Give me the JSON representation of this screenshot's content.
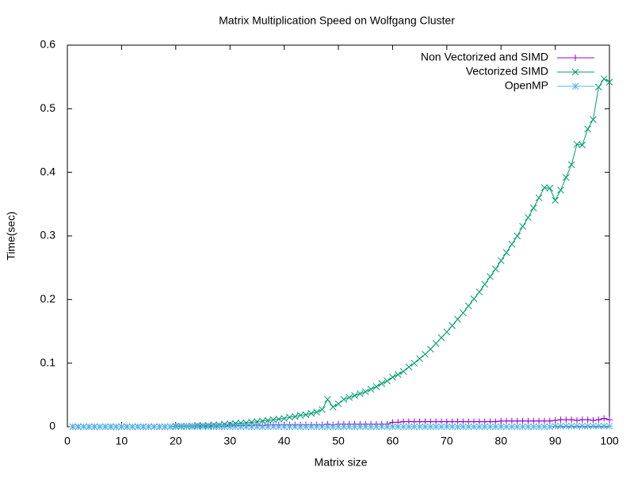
{
  "chart_data": {
    "type": "line",
    "title": "Matrix Multiplication Speed on Wolfgang Cluster",
    "x_label": "Matrix size",
    "y_label": "Time(sec)",
    "x": [
      1,
      2,
      3,
      4,
      5,
      6,
      7,
      8,
      9,
      10,
      11,
      12,
      13,
      14,
      15,
      16,
      17,
      18,
      19,
      20,
      21,
      22,
      23,
      24,
      25,
      26,
      27,
      28,
      29,
      30,
      31,
      32,
      33,
      34,
      35,
      36,
      37,
      38,
      39,
      40,
      41,
      42,
      43,
      44,
      45,
      46,
      47,
      48,
      49,
      50,
      51,
      52,
      53,
      54,
      55,
      56,
      57,
      58,
      59,
      60,
      61,
      62,
      63,
      64,
      65,
      66,
      67,
      68,
      69,
      70,
      71,
      72,
      73,
      74,
      75,
      76,
      77,
      78,
      79,
      80,
      81,
      82,
      83,
      84,
      85,
      86,
      87,
      88,
      89,
      90,
      91,
      92,
      93,
      94,
      95,
      96,
      97,
      98,
      99,
      100
    ],
    "series": [
      {
        "name": "Non Vectorized and SIMD",
        "color": "#9400d3",
        "marker": "plus",
        "values": [
          0,
          0,
          0,
          0,
          0,
          0,
          0,
          0,
          0,
          0,
          0,
          0,
          0,
          0,
          0,
          0,
          0,
          0,
          0,
          0.001,
          0.001,
          0.001,
          0.001,
          0.001,
          0.001,
          0.001,
          0.001,
          0.001,
          0.001,
          0.002,
          0.002,
          0.002,
          0.002,
          0.002,
          0.003,
          0.002,
          0.003,
          0.003,
          0.003,
          0.003,
          0.003,
          0.003,
          0.003,
          0.003,
          0.003,
          0.003,
          0.003,
          0.004,
          0.003,
          0.004,
          0.004,
          0.004,
          0.004,
          0.004,
          0.004,
          0.004,
          0.004,
          0.004,
          0.004,
          0.007,
          0.007,
          0.008,
          0.008,
          0.008,
          0.008,
          0.008,
          0.008,
          0.008,
          0.008,
          0.008,
          0.008,
          0.008,
          0.008,
          0.008,
          0.008,
          0.008,
          0.008,
          0.008,
          0.008,
          0.009,
          0.009,
          0.009,
          0.009,
          0.009,
          0.009,
          0.009,
          0.009,
          0.009,
          0.009,
          0.01,
          0.011,
          0.011,
          0.011,
          0.01,
          0.011,
          0.011,
          0.01,
          0.011,
          0.013,
          0.011
        ]
      },
      {
        "name": "Vectorized SIMD",
        "color": "#009e73",
        "marker": "cross",
        "values": [
          0,
          0,
          0,
          0,
          0,
          0,
          0,
          0,
          0,
          0,
          0,
          0,
          0,
          0,
          0,
          0,
          0,
          0,
          0,
          0.001,
          0.001,
          0.001,
          0.001,
          0.002,
          0.002,
          0.002,
          0.003,
          0.003,
          0.004,
          0.004,
          0.005,
          0.006,
          0.006,
          0.007,
          0.008,
          0.009,
          0.01,
          0.011,
          0.012,
          0.013,
          0.015,
          0.016,
          0.018,
          0.019,
          0.021,
          0.023,
          0.027,
          0.043,
          0.031,
          0.036,
          0.043,
          0.046,
          0.049,
          0.052,
          0.055,
          0.059,
          0.063,
          0.068,
          0.072,
          0.078,
          0.082,
          0.087,
          0.094,
          0.1,
          0.107,
          0.114,
          0.122,
          0.131,
          0.14,
          0.149,
          0.159,
          0.169,
          0.179,
          0.19,
          0.201,
          0.212,
          0.224,
          0.236,
          0.248,
          0.261,
          0.274,
          0.287,
          0.3,
          0.315,
          0.329,
          0.344,
          0.36,
          0.376,
          0.375,
          0.356,
          0.372,
          0.392,
          0.412,
          0.444,
          0.443,
          0.468,
          0.483,
          0.534,
          0.547,
          0.542
        ]
      },
      {
        "name": "OpenMP",
        "color": "#56b4e9",
        "marker": "star",
        "values": [
          0,
          0,
          0,
          0,
          0,
          0,
          0,
          0,
          0,
          0,
          0,
          0,
          0,
          0,
          0,
          0,
          0,
          0,
          0,
          0,
          0,
          0,
          0,
          0,
          0,
          0,
          0,
          0,
          0,
          0,
          0,
          0,
          0,
          0,
          0,
          0,
          0,
          0,
          0,
          0,
          0,
          0,
          0,
          0,
          0,
          0,
          0,
          0,
          0,
          0,
          0,
          0,
          0,
          0,
          0,
          0,
          0,
          0,
          0,
          0,
          0,
          0,
          0,
          0,
          0,
          0,
          0,
          0,
          0,
          0,
          0,
          0,
          0,
          0,
          0,
          0,
          0,
          0,
          0,
          0,
          0,
          0,
          0,
          0,
          0,
          0,
          0,
          0,
          0,
          0.001,
          0.001,
          0.001,
          0.001,
          0.001,
          0.001,
          0.001,
          0.001,
          0.001,
          0.001,
          0.001
        ]
      }
    ],
    "xlim": [
      0,
      100
    ],
    "xticks": [
      0,
      10,
      20,
      30,
      40,
      50,
      60,
      70,
      80,
      90,
      100
    ],
    "ylim": [
      0,
      0.6
    ],
    "yticks": [
      0,
      0.1,
      0.2,
      0.3,
      0.4,
      0.5,
      0.6
    ],
    "grid": false,
    "legend": "top-right"
  }
}
